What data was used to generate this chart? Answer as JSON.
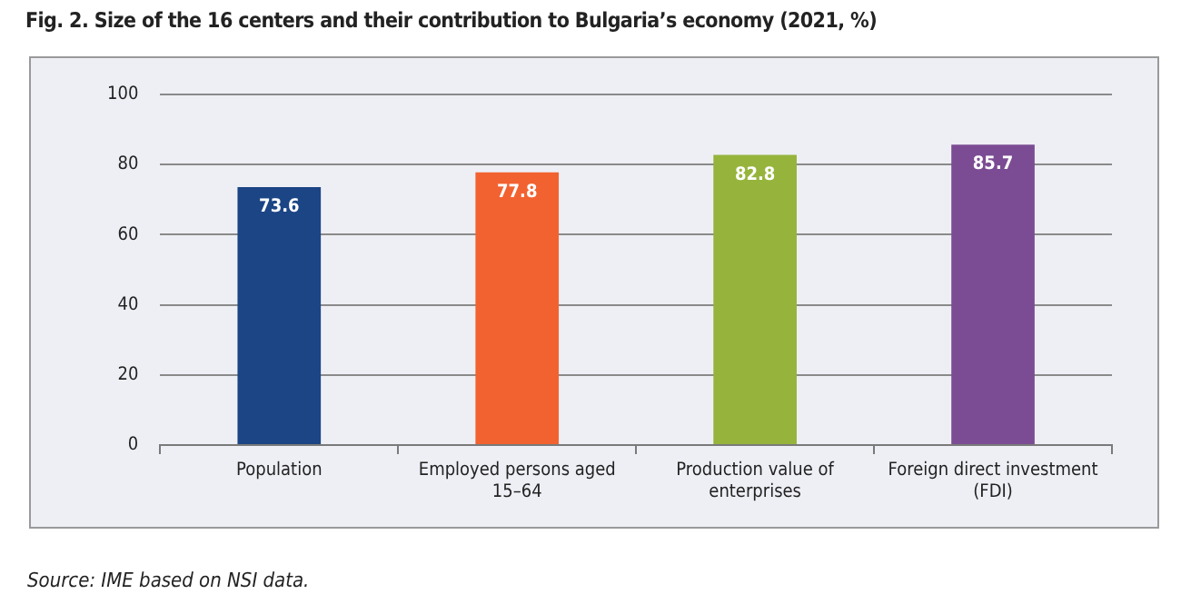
{
  "chart_data": {
    "type": "bar",
    "title": "Fig. 2. Size of the 16 centers and their contribution to Bulgaria’s economy (2021, %)",
    "categories": [
      "Population",
      "Employed persons aged 15–64",
      "Production value of enterprises",
      "Foreign direct investment (FDI)"
    ],
    "values": [
      73.6,
      77.8,
      82.8,
      85.7
    ],
    "colors": [
      "#1b4585",
      "#f26230",
      "#96b43c",
      "#7b4c93"
    ],
    "ylim": [
      0,
      100
    ],
    "yticks": [
      0,
      20,
      40,
      60,
      80,
      100
    ],
    "grid": "y",
    "legend": false,
    "data_labels": true,
    "annotations": [
      "Source: IME based on NSI data."
    ]
  }
}
